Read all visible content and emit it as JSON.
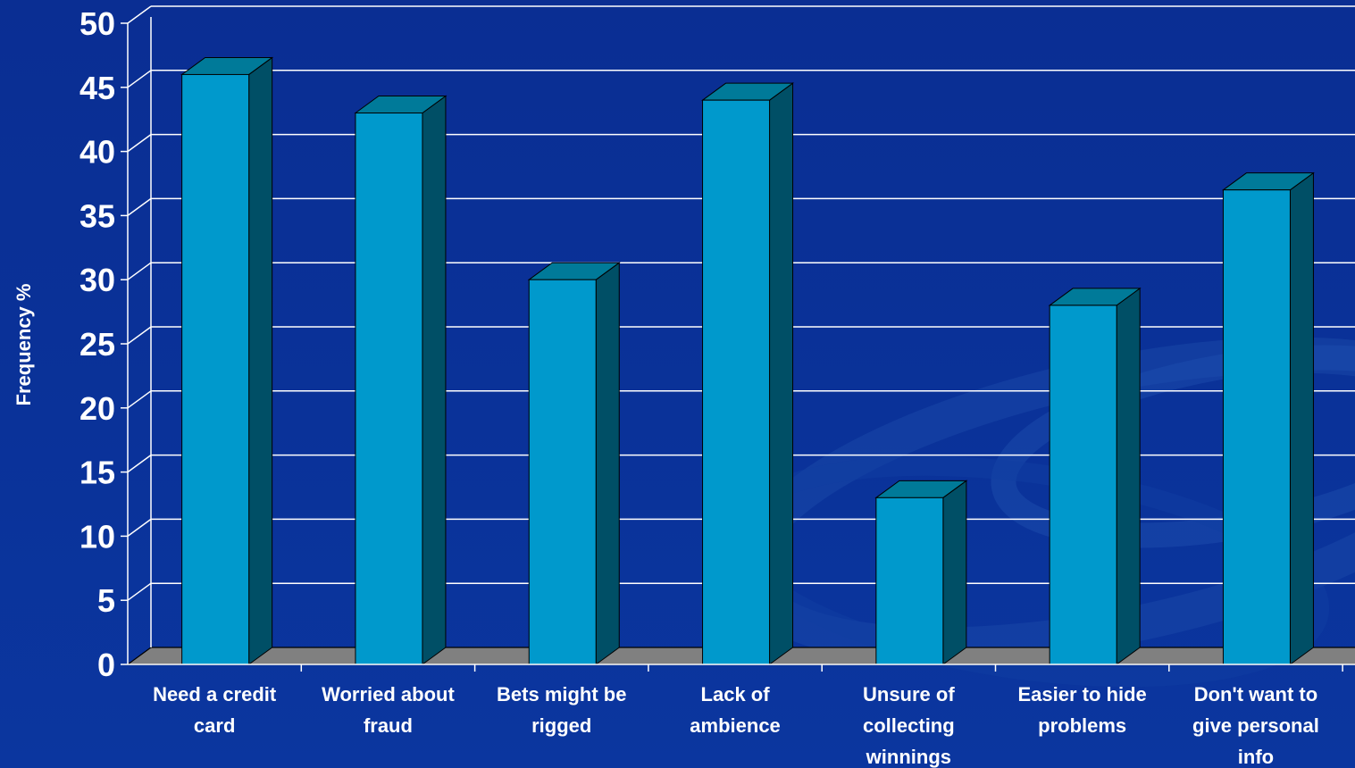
{
  "chart_data": {
    "type": "bar",
    "title": "",
    "xlabel": "",
    "ylabel": "Frequency %",
    "ylim": [
      0,
      50
    ],
    "yticks": [
      0,
      5,
      10,
      15,
      20,
      25,
      30,
      35,
      40,
      45,
      50
    ],
    "grid": true,
    "legend": "none",
    "categories": [
      [
        "Need a credit",
        "card"
      ],
      [
        "Worried about",
        "fraud"
      ],
      [
        "Bets might be",
        "rigged"
      ],
      [
        "Lack of",
        "ambience"
      ],
      [
        "Unsure of",
        "collecting",
        "winnings"
      ],
      [
        "Easier to hide",
        "problems"
      ],
      [
        "Don't want to",
        "give personal",
        "info"
      ]
    ],
    "values": [
      46,
      43,
      30,
      44,
      13,
      28,
      37
    ]
  },
  "colors": {
    "background": "#0a3299",
    "bar_front": "#0099cc",
    "bar_side": "#004f66",
    "bar_top": "#007a99",
    "floor": "#808080",
    "grid": "#ffffff",
    "text": "#ffffff"
  }
}
